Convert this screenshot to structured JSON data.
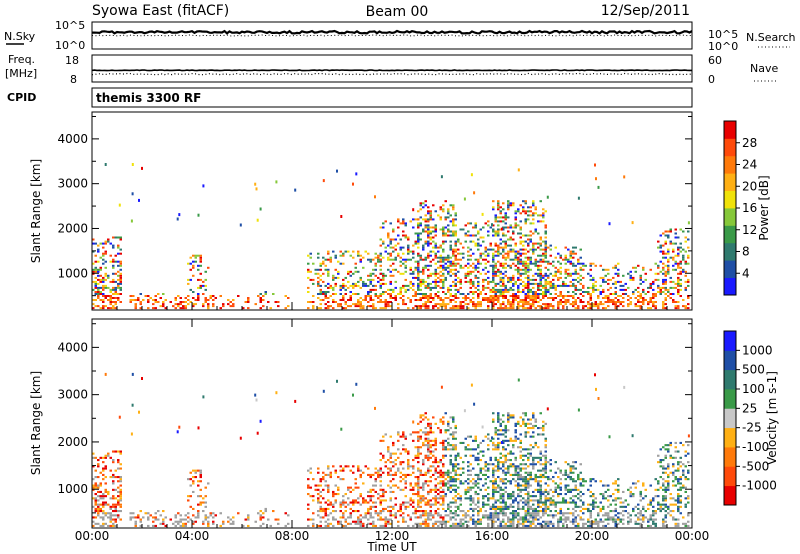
{
  "header": {
    "station": "Syowa East (fitACF)",
    "beam": "Beam 00",
    "date": "12/Sep/2011"
  },
  "colors": {
    "background": "#ffffff",
    "axes": "#000000",
    "ground_scatter": "#a0a0a0",
    "power_scale": [
      "#1a1aff",
      "#1f4fa6",
      "#2f7a6e",
      "#3a9a48",
      "#86c83a",
      "#f0e20a",
      "#ffb014",
      "#ff7a0a",
      "#ff4a0a",
      "#e80000"
    ],
    "velocity_scale": [
      "#e80000",
      "#ff4a0a",
      "#ff7a0a",
      "#ffb014",
      "#c8c8c8",
      "#3a9a48",
      "#2f7a6e",
      "#1f4fa6",
      "#1a1aff"
    ]
  },
  "panels": {
    "nsky": {
      "left_label": "N.Sky",
      "left_ticks": [
        "10^5",
        "10^0"
      ],
      "right_ticks": [
        "10^5",
        "10^0"
      ],
      "right_label": "N.Search"
    },
    "freq": {
      "left_label_1": "Freq.",
      "left_label_2": "[MHz]",
      "left_ticks": [
        "18",
        "8"
      ],
      "right_ticks": [
        "60",
        "0"
      ],
      "right_label": "Nave"
    },
    "cpid": {
      "left_label": "CPID",
      "program": "themis 3300 RF"
    }
  },
  "chart_data": [
    {
      "type": "heatmap",
      "title": "",
      "xlabel": "",
      "ylabel": "Slant Range [km]",
      "x_range_hours": [
        0,
        24
      ],
      "ylim": [
        180,
        4600
      ],
      "y_ticks": [
        1000,
        2000,
        3000,
        4000
      ],
      "colorbar": {
        "label": "Power [dB]",
        "range": [
          0,
          32
        ],
        "ticks": [
          "4",
          "8",
          "12",
          "16",
          "20",
          "24",
          "28"
        ]
      },
      "grid": false
    },
    {
      "type": "heatmap",
      "title": "",
      "xlabel": "Time UT",
      "ylabel": "Slant Range [km]",
      "x_range_hours": [
        0,
        24
      ],
      "ylim": [
        180,
        4600
      ],
      "y_ticks": [
        1000,
        2000,
        3000,
        4000
      ],
      "x_ticks": [
        "00:00",
        "04:00",
        "08:00",
        "12:00",
        "16:00",
        "20:00",
        "00:00"
      ],
      "colorbar": {
        "label": "Velocity [m s-1]",
        "ticks": [
          "1000",
          "500",
          "100",
          "25",
          "-25",
          "-100",
          "-500",
          "-1000"
        ]
      },
      "grid": false
    }
  ],
  "x_axis": {
    "label": "Time UT",
    "ticks": [
      "00:00",
      "04:00",
      "08:00",
      "12:00",
      "16:00",
      "20:00",
      "00:00"
    ]
  }
}
